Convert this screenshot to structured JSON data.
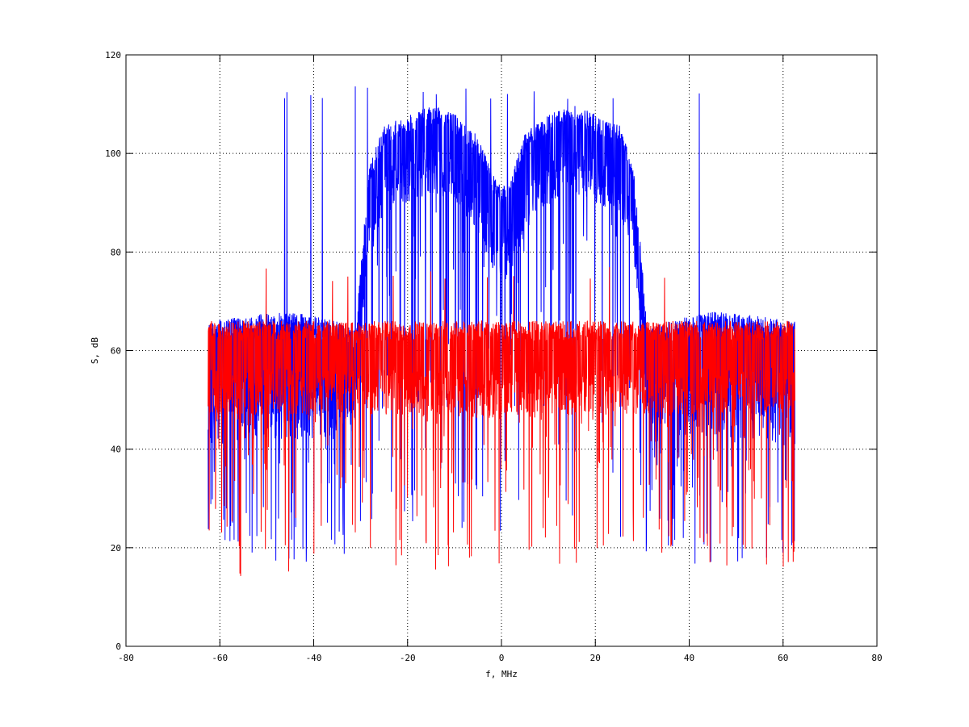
{
  "chart_data": {
    "type": "line",
    "xlabel": "f, MHz",
    "ylabel": "S, dB",
    "xlim": [
      -80,
      80
    ],
    "ylim": [
      0,
      120
    ],
    "x_ticks": [
      -80,
      -60,
      -40,
      -20,
      0,
      20,
      40,
      60,
      80
    ],
    "y_ticks": [
      0,
      20,
      40,
      60,
      80,
      100,
      120
    ],
    "x_tick_labels": [
      "-80",
      "-60",
      "-40",
      "-20",
      "0",
      "20",
      "40",
      "60",
      "80"
    ],
    "y_tick_labels": [
      "0",
      "20",
      "40",
      "60",
      "80",
      "100",
      "120"
    ],
    "grid": true,
    "grid_style": "dotted",
    "colors": {
      "series_1": "#0000ff",
      "series_2": "#ff0000",
      "axes": "#000000",
      "background": "#ffffff"
    },
    "series": [
      {
        "color": "#0000ff",
        "x_range": [
          -62.5,
          62.5
        ],
        "envelope": {
          "x": [
            -62,
            -55,
            -45,
            -35,
            -31,
            -30,
            -28,
            -25,
            -20,
            -15,
            -10,
            -5,
            -2,
            0,
            2,
            5,
            10,
            15,
            20,
            25,
            28,
            30,
            31,
            35,
            45,
            55,
            62
          ],
          "upper": [
            66,
            67,
            68,
            66,
            64,
            78,
            98,
            106,
            108,
            110,
            108,
            104,
            96,
            93,
            96,
            104,
            108,
            110,
            108,
            106,
            98,
            78,
            64,
            66,
            68,
            67,
            66
          ],
          "mean": [
            57,
            57,
            57,
            57,
            57,
            66,
            90,
            98,
            100,
            101,
            99,
            93,
            85,
            82,
            85,
            93,
            99,
            101,
            100,
            98,
            90,
            66,
            57,
            57,
            57,
            57,
            57
          ],
          "lower": [
            40,
            42,
            42,
            42,
            45,
            62,
            80,
            88,
            90,
            92,
            90,
            84,
            76,
            72,
            76,
            84,
            90,
            92,
            90,
            88,
            80,
            62,
            45,
            42,
            42,
            42,
            40
          ]
        },
        "peak": 114,
        "min": 13.5
      },
      {
        "color": "#ff0000",
        "x_range": [
          -62.5,
          62.5
        ],
        "envelope": {
          "x": [
            -62,
            -40,
            -20,
            0,
            20,
            40,
            62
          ],
          "upper": [
            66,
            66,
            66,
            66,
            66,
            66,
            66
          ],
          "mean": [
            57,
            57,
            57,
            57,
            57,
            57,
            57
          ],
          "lower": [
            47,
            47,
            47,
            46,
            47,
            47,
            47
          ]
        },
        "peak": 77,
        "min": 10.5
      }
    ]
  }
}
